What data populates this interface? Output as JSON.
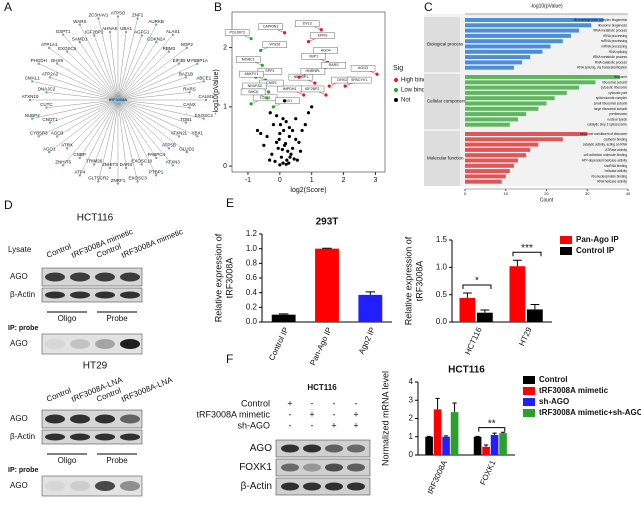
{
  "panel_labels": [
    "A",
    "B",
    "C",
    "D",
    "E",
    "F"
  ],
  "network": {
    "center": "tRF3008A",
    "nodes": [
      "ATP5O",
      "UBA1",
      "ZNF2",
      "AGFG1",
      "AURKB",
      "CDKN2A",
      "ALAS1",
      "RBM3",
      "NOP2",
      "EIF3B",
      "MYBBP1A",
      "BAZ1B",
      "ABCE1",
      "RARS",
      "CALM1",
      "CANX",
      "EXOSC2",
      "TOB1",
      "YBX1",
      "ATXN2L",
      "GLUD1",
      "ATP5B",
      "ATXN3",
      "PABPC4",
      "PTBP1",
      "EXOSC10",
      "EXOSC3",
      "DARS",
      "ZNRF1",
      "ZNHIT3",
      "GLTSCR2",
      "TRIM26",
      "ATF4",
      "CNBP",
      "ZNHIT6",
      "ATRX",
      "AGO1",
      "AGO3",
      "CYB5R3",
      "CNOT1",
      "NUBP2",
      "CUTC",
      "ATXN10",
      "DNAJC2",
      "CMAL1",
      "ATP2A2",
      "PHGDH",
      "DHX9",
      "ATP1A1",
      "EXOSC5",
      "GSPT1",
      "SAMD1",
      "WARS",
      "IGF2BP2",
      "ZC3HAV1",
      "AHNAK"
    ]
  },
  "blot_D1": {
    "title": "HCT116",
    "lysate": "Lysate",
    "lanes": [
      "Control",
      "tRF3008A mimetic",
      "Control",
      "tRF3008A mimetic"
    ],
    "rows": [
      "AGO",
      "β-Actin"
    ],
    "groups": [
      "Oligo",
      "Probe"
    ],
    "ip": "IP: probe",
    "ip_rows": [
      "AGO"
    ]
  },
  "blot_D2": {
    "title": "HT29",
    "lanes": [
      "Control",
      "tRF3008A-LNA",
      "Control",
      "tRF3008A-LNA"
    ],
    "rows": [
      "AGO",
      "β-Actin"
    ],
    "groups": [
      "Oligo",
      "Probe"
    ],
    "ip": "IP: probe",
    "ip_rows": [
      "AGO"
    ]
  },
  "blot_F": {
    "title": "HCT116",
    "conditions": [
      {
        "name": "Control",
        "marks": [
          "+",
          "-",
          "-",
          "-"
        ]
      },
      {
        "name": "tRF3008A mimetic",
        "marks": [
          "-",
          "+",
          "-",
          "+"
        ]
      },
      {
        "name": "sh-AGO",
        "marks": [
          "-",
          "-",
          "+",
          "+"
        ]
      }
    ],
    "rows": [
      "AGO",
      "FOXK1",
      "β-Actin"
    ]
  },
  "chart_data": [
    {
      "type": "scatter",
      "xlabel": "log2(Score)",
      "ylabel": "-log10(pValue)",
      "xlim": [
        -1.5,
        3.3
      ],
      "ylim": [
        -0.1,
        2.6
      ],
      "xticks": [
        -1,
        0,
        1,
        2,
        3
      ],
      "yticks": [
        0,
        1,
        2
      ],
      "legend_title": "Sig",
      "legend": "right",
      "series": [
        {
          "name": "High binding",
          "color": "#e41a1c",
          "x": [
            0.15,
            0.9,
            1.3,
            1.0,
            1.5,
            1.25,
            1.1,
            1.55,
            1.45,
            2.05,
            3.05,
            0.6,
            0.75
          ],
          "y": [
            2.25,
            2.1,
            2.3,
            1.85,
            1.75,
            1.6,
            1.4,
            1.35,
            1.2,
            1.35,
            1.55,
            1.5,
            1.2
          ],
          "labels": [
            "CAPRIN1",
            "EPRS",
            "DVL3",
            "AGO4",
            "XBP1",
            "RARS",
            "NPGBP1",
            "DHX15",
            "IGF2BP2",
            "SPACYV1",
            "AGO3",
            "HNRNPL",
            "IMPDH1"
          ]
        },
        {
          "name": "Low binding",
          "color": "#2ca02c",
          "x": [
            -0.9,
            -0.6,
            -0.55,
            -0.75,
            -0.45,
            -0.7,
            -0.35,
            -0.9,
            -0.4,
            -0.2
          ],
          "y": [
            2.15,
            1.95,
            1.7,
            1.5,
            1.45,
            1.3,
            1.25,
            1.05,
            1.15,
            1.0
          ],
          "labels": [
            "POLDIP3",
            "VPS26",
            "MORC1",
            "SPP1",
            "ANKFY1",
            "CMSS",
            "NDUFA3",
            "TCAF1",
            "SMC6",
            "PKD1"
          ]
        },
        {
          "name": "Not",
          "color": "#000000",
          "x": [
            -0.3,
            -0.1,
            0.1,
            0.2,
            -0.2,
            0.3,
            0.4,
            0.0,
            -0.4,
            0.5,
            0.6,
            0.15,
            -0.05,
            0.25,
            0.35,
            -0.25,
            0.05,
            0.45,
            0.55,
            -0.15,
            0.1,
            0.2,
            0.0,
            -0.1,
            0.3,
            0.4,
            0.7,
            0.8,
            -0.5,
            -0.6,
            0.65,
            0.12,
            -0.02,
            0.22,
            0.32,
            -0.32,
            0.08,
            0.18,
            0.28,
            0.02,
            0.9,
            1.0,
            -0.7,
            0.5,
            0.15
          ],
          "y": [
            0.9,
            0.85,
            0.8,
            0.75,
            0.7,
            0.65,
            0.6,
            0.55,
            0.5,
            0.45,
            0.4,
            0.35,
            0.3,
            0.25,
            0.2,
            0.2,
            0.15,
            0.12,
            0.1,
            0.08,
            0.05,
            0.03,
            0.02,
            0.4,
            0.5,
            0.3,
            0.6,
            0.7,
            0.35,
            0.55,
            0.25,
            0.6,
            0.45,
            0.1,
            0.15,
            0.1,
            0.28,
            0.38,
            0.05,
            0.7,
            0.9,
            1.0,
            0.6,
            0.8,
            1.1
          ]
        }
      ]
    },
    {
      "type": "go_bar",
      "top_label": "-log10(pValue)",
      "xlabel": "Count",
      "xlim": [
        0,
        40
      ],
      "xticks": [
        0,
        10,
        20,
        30,
        40
      ],
      "groups": [
        {
          "name": "Biological process",
          "color": "#4a8fd6",
          "categories": [
            "ribonucleoprotein complex biogenesis",
            "ribosome biogenesis",
            "rRNA metabolic process",
            "rRNA processing",
            "ncRNA processing",
            "mRNA processing",
            "RNA splicing",
            "tRNA metabolic process",
            "RNA catabolic process",
            "RNA splicing, via transesterification"
          ],
          "values": [
            34,
            31,
            28,
            26,
            24,
            21,
            19,
            16,
            14,
            12
          ]
        },
        {
          "name": "Cellular component",
          "color": "#5cb85c",
          "categories": [
            "ribosome",
            "ribosomal subunit",
            "cytosolic ribosome",
            "cytosolic part",
            "spliceosomal complex",
            "small ribosomal subunit",
            "large ribosomal subunit",
            "preribosome",
            "nuclear speck",
            "catalytic step 2 spliceosome"
          ],
          "values": [
            38,
            32,
            28,
            25,
            22,
            20,
            18,
            15,
            13,
            11
          ]
        },
        {
          "name": "Molecular function",
          "color": "#e05555",
          "categories": [
            "structural constituent of ribosome",
            "cadherin binding",
            "catalytic activity, acting on RNA",
            "ATPase activity",
            "cell adhesion molecule binding",
            "ATP-dependent helicase activity",
            "snoRNA binding",
            "helicase activity",
            "ribonucleoprotein binding",
            "RNA helicase activity"
          ],
          "values": [
            30,
            24,
            18,
            16,
            15,
            13,
            12,
            11,
            10,
            9
          ]
        }
      ]
    },
    {
      "type": "bar",
      "title": "293T",
      "ylabel": [
        "Relative expression of",
        "tRF3008A"
      ],
      "categories": [
        "Control IP",
        "Pan-Ago IP",
        "Ago2 IP"
      ],
      "values": [
        0.1,
        1.0,
        0.37
      ],
      "errors": [
        0.01,
        0.005,
        0.04
      ],
      "colors": [
        "#000000",
        "#ff0000",
        "#1f1fff"
      ],
      "ylim": [
        0,
        1.2
      ],
      "yticks": [
        {
          "value": 0,
          "label": "0.0"
        },
        0.2,
        0.4,
        0.6,
        0.8,
        {
          "value": 1,
          "label": "1.0"
        },
        1.2
      ]
    },
    {
      "type": "bar",
      "ylabel": [
        "Relative expression of",
        "tRF3008A"
      ],
      "categories": [
        "HCT116",
        "HT29"
      ],
      "ylim": [
        0,
        1.5
      ],
      "yticks": [
        {
          "value": 0,
          "label": "0.0"
        },
        0.5,
        {
          "value": 1,
          "label": "1.0"
        },
        1.5
      ],
      "legend": "right",
      "annotations": [
        "*",
        "***"
      ],
      "series": [
        {
          "name": "Pan-Ago IP",
          "color": "#ff0000",
          "values": [
            0.44,
            1.02
          ],
          "errors": [
            0.09,
            0.11
          ]
        },
        {
          "name": "Control IP",
          "color": "#000000",
          "values": [
            0.17,
            0.23
          ],
          "errors": [
            0.05,
            0.09
          ]
        }
      ]
    },
    {
      "type": "bar",
      "title": "HCT116",
      "ylabel": [
        "Normalized mRNA level"
      ],
      "categories": [
        "tRF3008A",
        "FOXK1"
      ],
      "ylim": [
        0,
        4
      ],
      "yticks": [
        0,
        1,
        2,
        3,
        4
      ],
      "legend": "right",
      "annotations": [
        "**"
      ],
      "series": [
        {
          "name": "Control",
          "color": "#000000",
          "values": [
            1.0,
            1.0
          ],
          "errors": [
            0.02,
            0.02
          ]
        },
        {
          "name": "tRF3008A mimetic",
          "color": "#ff0000",
          "values": [
            2.5,
            0.45
          ],
          "errors": [
            0.6,
            0.1
          ]
        },
        {
          "name": "sh-AGO",
          "color": "#1f1fff",
          "values": [
            1.0,
            1.1
          ],
          "errors": [
            0.05,
            0.1
          ]
        },
        {
          "name": "tRF3008A mimetic+sh-AGO",
          "color": "#2ca02c",
          "values": [
            2.35,
            1.2
          ],
          "errors": [
            0.5,
            0.05
          ]
        }
      ]
    }
  ]
}
